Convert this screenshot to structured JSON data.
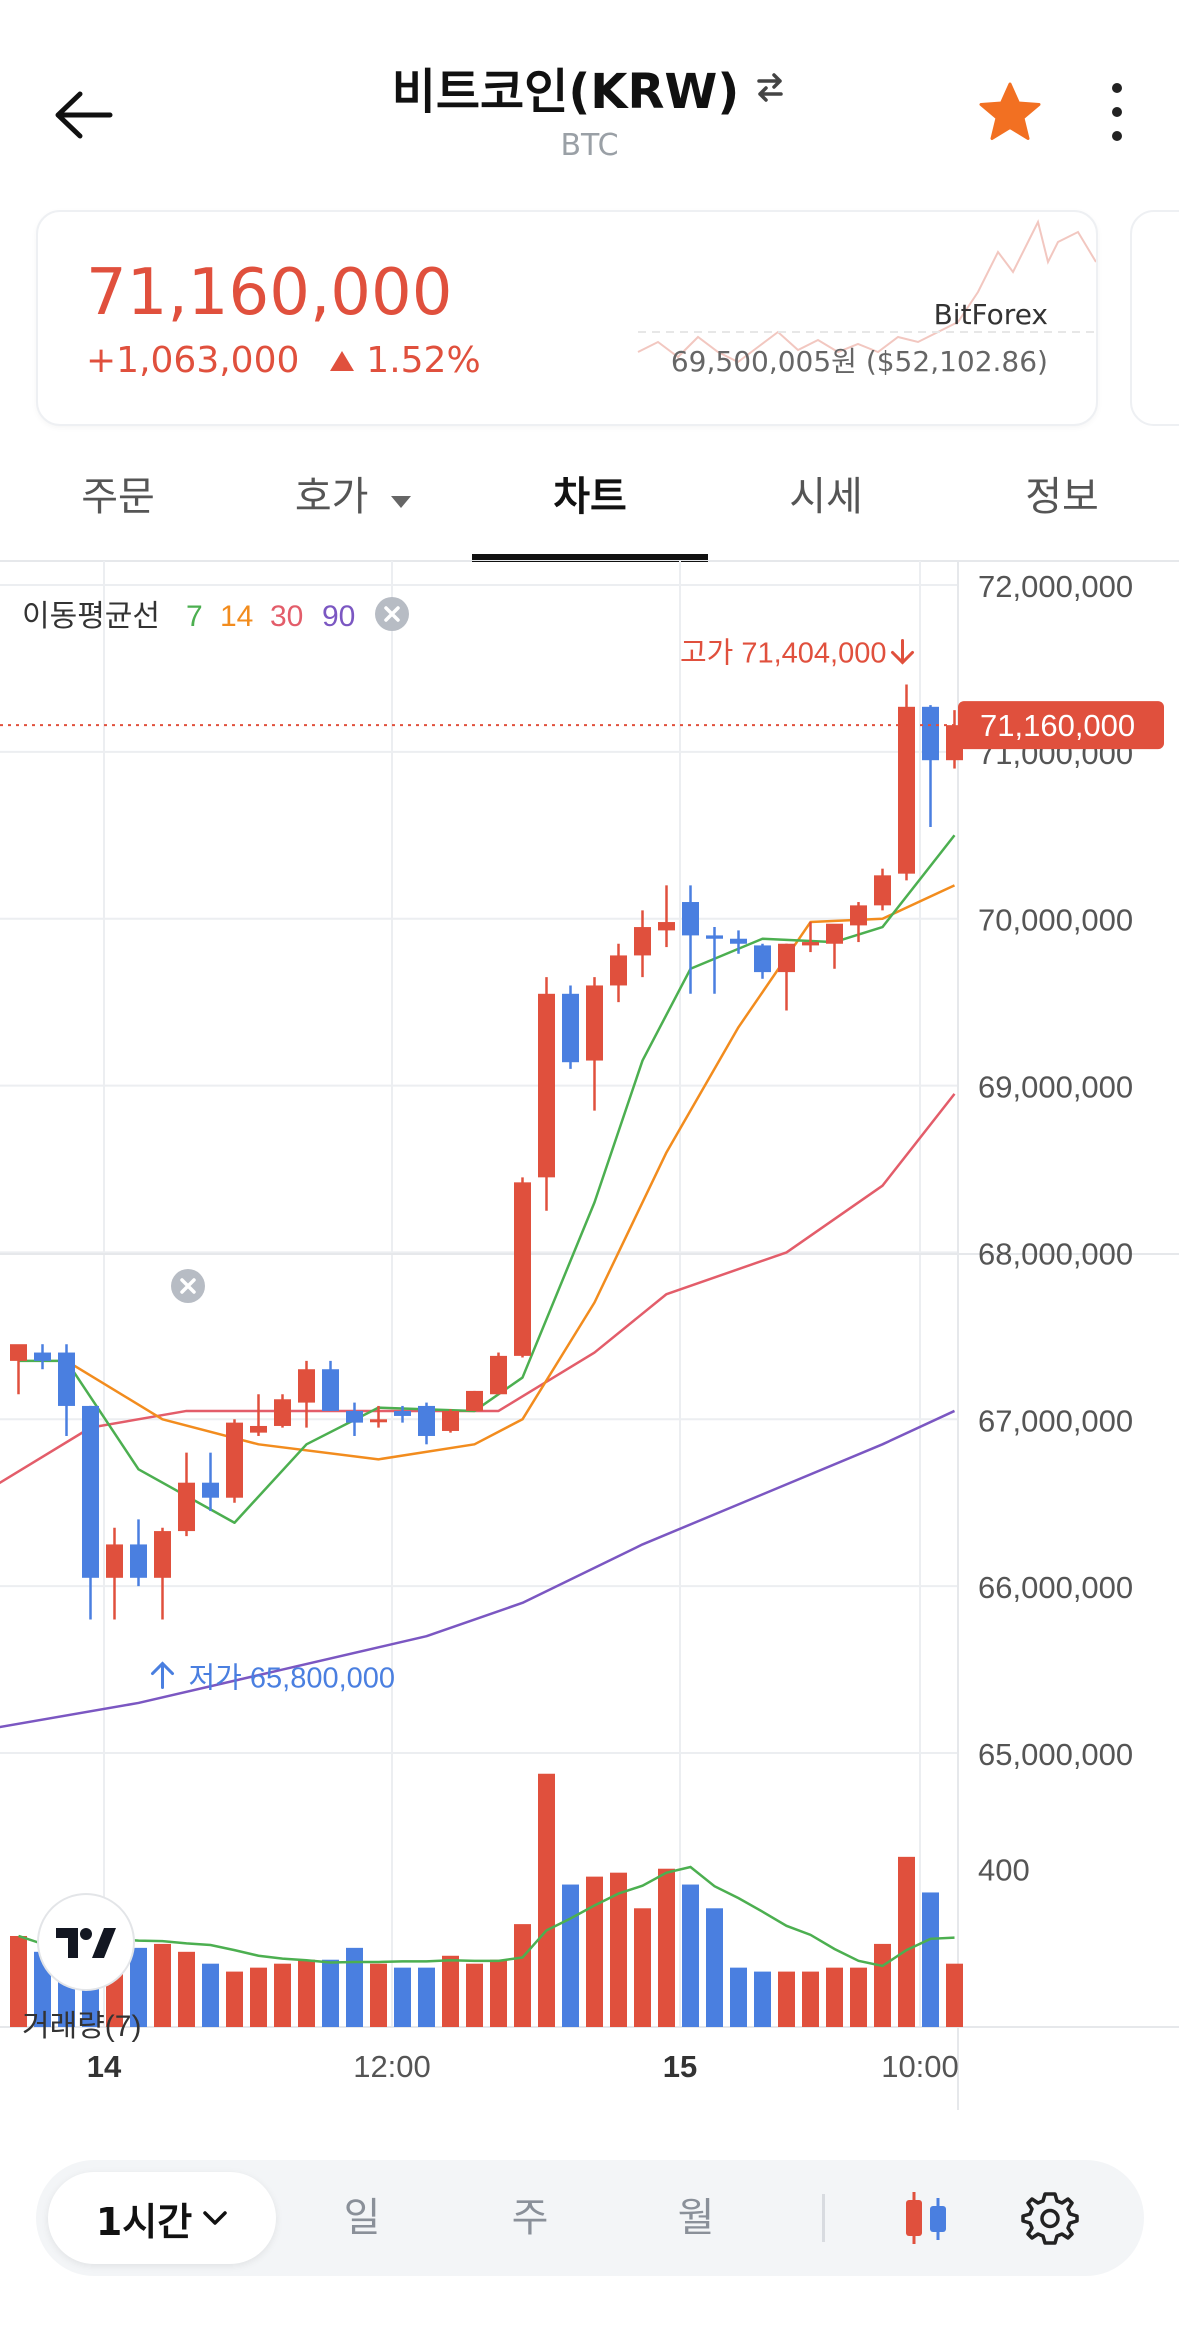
{
  "header": {
    "title": "비트코인(KRW)",
    "subtitle": "BTC"
  },
  "ticker": {
    "price": "71,160,000",
    "change_amount": "+1,063,000",
    "change_percent": "1.52%",
    "exchange": "BitForex",
    "exchange_price": "69,500,005원 ($52,102.86)"
  },
  "tabs": [
    {
      "label": "주문"
    },
    {
      "label": "호가"
    },
    {
      "label": "차트"
    },
    {
      "label": "시세"
    },
    {
      "label": "정보"
    }
  ],
  "chart": {
    "ma_label": "이동평균선",
    "ma_periods": [
      "7",
      "14",
      "30",
      "90"
    ],
    "high_label": "고가 71,404,000",
    "low_label": "저가 65,800,000",
    "current_price_tag": "71,160,000",
    "volume_label": "거래량(7)",
    "volume_tick": "400",
    "price_ticks": [
      "72,000,000",
      "71,000,000",
      "70,000,000",
      "69,000,000",
      "68,000,000",
      "67,000,000",
      "66,000,000",
      "65,000,000"
    ],
    "time_ticks": [
      "14",
      "12:00",
      "15",
      "10:00"
    ]
  },
  "bottom_bar": {
    "interval": "1시간",
    "periods": [
      "일",
      "주",
      "월"
    ]
  },
  "colors": {
    "up": "#e0503d",
    "down": "#4a7fe0",
    "ma7": "#4caf50",
    "ma14": "#f28c1e",
    "ma30": "#e35d6a",
    "ma90": "#7b57c2",
    "star": "#f27022"
  },
  "chart_data": {
    "type": "candlestick",
    "interval": "1h",
    "candles": [
      {
        "o": 67350000,
        "h": 67400000,
        "l": 67150000,
        "c": 67450000
      },
      {
        "o": 67400000,
        "h": 67450000,
        "l": 67300000,
        "c": 67350000
      },
      {
        "o": 67400000,
        "h": 67450000,
        "l": 66900000,
        "c": 67080000
      },
      {
        "o": 67080000,
        "h": 67080000,
        "l": 65800000,
        "c": 66050000
      },
      {
        "o": 66050000,
        "h": 66350000,
        "l": 65800000,
        "c": 66250000
      },
      {
        "o": 66250000,
        "h": 66400000,
        "l": 66000000,
        "c": 66050000
      },
      {
        "o": 66050000,
        "h": 66350000,
        "l": 65800000,
        "c": 66330000
      },
      {
        "o": 66330000,
        "h": 66800000,
        "l": 66300000,
        "c": 66620000
      },
      {
        "o": 66620000,
        "h": 66800000,
        "l": 66450000,
        "c": 66530000
      },
      {
        "o": 66530000,
        "h": 67000000,
        "l": 66500000,
        "c": 66980000
      },
      {
        "o": 66920000,
        "h": 67150000,
        "l": 66900000,
        "c": 66960000
      },
      {
        "o": 66960000,
        "h": 67150000,
        "l": 66950000,
        "c": 67120000
      },
      {
        "o": 67100000,
        "h": 67350000,
        "l": 66950000,
        "c": 67300000
      },
      {
        "o": 67300000,
        "h": 67350000,
        "l": 67050000,
        "c": 67050000
      },
      {
        "o": 67050000,
        "h": 67100000,
        "l": 66900000,
        "c": 66980000
      },
      {
        "o": 67000000,
        "h": 67080000,
        "l": 66950000,
        "c": 67000000
      },
      {
        "o": 67050000,
        "h": 67080000,
        "l": 66980000,
        "c": 67020000
      },
      {
        "o": 67080000,
        "h": 67100000,
        "l": 66850000,
        "c": 66900000
      },
      {
        "o": 66930000,
        "h": 67060000,
        "l": 66920000,
        "c": 67050000
      },
      {
        "o": 67050000,
        "h": 67170000,
        "l": 67050000,
        "c": 67170000
      },
      {
        "o": 67150000,
        "h": 67400000,
        "l": 67150000,
        "c": 67380000
      },
      {
        "o": 67380000,
        "h": 68450000,
        "l": 67370000,
        "c": 68420000
      },
      {
        "o": 68450000,
        "h": 69650000,
        "l": 68250000,
        "c": 69550000
      },
      {
        "o": 69550000,
        "h": 69600000,
        "l": 69100000,
        "c": 69140000
      },
      {
        "o": 69150000,
        "h": 69650000,
        "l": 68850000,
        "c": 69600000
      },
      {
        "o": 69600000,
        "h": 69850000,
        "l": 69500000,
        "c": 69780000
      },
      {
        "o": 69780000,
        "h": 70050000,
        "l": 69650000,
        "c": 69950000
      },
      {
        "o": 69930000,
        "h": 70200000,
        "l": 69830000,
        "c": 69980000
      },
      {
        "o": 70100000,
        "h": 70200000,
        "l": 69550000,
        "c": 69900000
      },
      {
        "o": 69900000,
        "h": 69950000,
        "l": 69550000,
        "c": 69880000
      },
      {
        "o": 69880000,
        "h": 69930000,
        "l": 69790000,
        "c": 69850000
      },
      {
        "o": 69840000,
        "h": 69850000,
        "l": 69640000,
        "c": 69680000
      },
      {
        "o": 69680000,
        "h": 69850000,
        "l": 69450000,
        "c": 69850000
      },
      {
        "o": 69840000,
        "h": 69980000,
        "l": 69800000,
        "c": 69860000
      },
      {
        "o": 69850000,
        "h": 69950000,
        "l": 69700000,
        "c": 69970000
      },
      {
        "o": 69960000,
        "h": 70100000,
        "l": 69860000,
        "c": 70080000
      },
      {
        "o": 70080000,
        "h": 70300000,
        "l": 70050000,
        "c": 70260000
      },
      {
        "o": 70270000,
        "h": 71404000,
        "l": 70230000,
        "c": 71270000
      },
      {
        "o": 71270000,
        "h": 71280000,
        "l": 70550000,
        "c": 70950000
      },
      {
        "o": 70950000,
        "h": 71250000,
        "l": 70900000,
        "c": 71160000
      }
    ],
    "volumes": [
      230,
      190,
      230,
      250,
      210,
      200,
      210,
      190,
      160,
      140,
      150,
      160,
      170,
      170,
      200,
      160,
      150,
      150,
      180,
      160,
      170,
      260,
      640,
      360,
      380,
      390,
      300,
      400,
      360,
      300,
      150,
      140,
      140,
      140,
      150,
      150,
      210,
      430,
      340,
      160
    ],
    "ma7": [
      [
        0,
        67350000
      ],
      [
        2,
        67350000
      ],
      [
        5,
        66700000
      ],
      [
        9,
        66380000
      ],
      [
        12,
        66850000
      ],
      [
        15,
        67070000
      ],
      [
        19,
        67050000
      ],
      [
        21,
        67250000
      ],
      [
        24,
        68300000
      ],
      [
        26,
        69150000
      ],
      [
        28,
        69700000
      ],
      [
        31,
        69880000
      ],
      [
        34,
        69860000
      ],
      [
        36,
        69950000
      ],
      [
        39,
        70500000
      ]
    ],
    "ma14": [
      [
        2,
        67350000
      ],
      [
        6,
        67000000
      ],
      [
        10,
        66850000
      ],
      [
        15,
        66760000
      ],
      [
        19,
        66850000
      ],
      [
        21,
        67000000
      ],
      [
        24,
        67700000
      ],
      [
        27,
        68600000
      ],
      [
        30,
        69350000
      ],
      [
        33,
        69980000
      ],
      [
        36,
        70000000
      ],
      [
        39,
        70200000
      ]
    ],
    "ma30": [
      [
        -1,
        66600000
      ],
      [
        3,
        66950000
      ],
      [
        7,
        67050000
      ],
      [
        13,
        67050000
      ],
      [
        20,
        67050000
      ],
      [
        24,
        67400000
      ],
      [
        27,
        67750000
      ],
      [
        32,
        68000000
      ],
      [
        36,
        68400000
      ],
      [
        39,
        68950000
      ]
    ],
    "ma90": [
      [
        -1,
        65150000
      ],
      [
        5,
        65300000
      ],
      [
        11,
        65500000
      ],
      [
        17,
        65700000
      ],
      [
        21,
        65900000
      ],
      [
        26,
        66250000
      ],
      [
        31,
        66550000
      ],
      [
        36,
        66850000
      ],
      [
        39,
        67050000
      ]
    ],
    "ylim": [
      65000000,
      72000000
    ],
    "volume_ylim": [
      0,
      700
    ],
    "legend": [
      "7",
      "14",
      "30",
      "90"
    ]
  }
}
